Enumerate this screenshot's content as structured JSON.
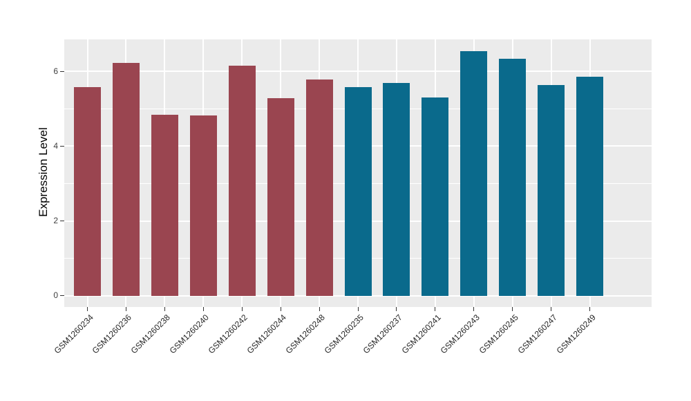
{
  "chart_data": {
    "type": "bar",
    "title": "",
    "xlabel": "",
    "ylabel": "Expression Level",
    "yticks": [
      0,
      2,
      4,
      6
    ],
    "yticks_minor": [
      1,
      3,
      5
    ],
    "ylim": [
      -0.3,
      6.85
    ],
    "grid": true,
    "legend": "none",
    "panel_background": "#EBEBEB",
    "gridline_color": "#FFFFFF",
    "tick_color": "#333333",
    "categories": [
      "GSM1260234",
      "GSM1260236",
      "GSM1260238",
      "GSM1260240",
      "GSM1260242",
      "GSM1260244",
      "GSM1260248",
      "GSM1260235",
      "GSM1260237",
      "GSM1260241",
      "GSM1260243",
      "GSM1260245",
      "GSM1260247",
      "GSM1260249"
    ],
    "values": [
      5.58,
      6.22,
      4.83,
      4.81,
      6.14,
      5.28,
      5.78,
      5.57,
      5.68,
      5.3,
      6.53,
      6.34,
      5.63,
      5.85
    ],
    "bar_groups": [
      "A",
      "A",
      "A",
      "A",
      "A",
      "A",
      "A",
      "B",
      "B",
      "B",
      "B",
      "B",
      "B",
      "B"
    ],
    "group_colors": {
      "A": "#9A4550",
      "B": "#0A6A8C"
    }
  }
}
